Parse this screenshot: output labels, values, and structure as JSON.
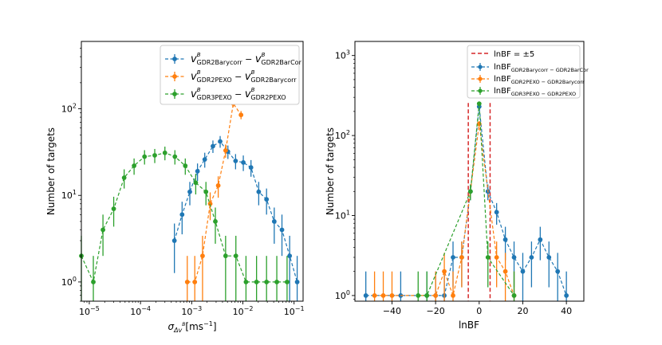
{
  "colors": {
    "blue": "#1f77b4",
    "orange": "#ff7f0e",
    "green": "#2ca02c",
    "red": "#d62728"
  },
  "chart_data": [
    {
      "type": "line",
      "xscale": "log",
      "yscale": "log",
      "xlim": [
        7e-06,
        0.15
      ],
      "ylim": [
        0.6,
        600
      ],
      "xlabel": "σ_Δv^B[ms^-1]",
      "xlabel_main": "σ",
      "xlabel_sub": "Δv",
      "xlabel_sup": "B",
      "xlabel_tail": "[ms",
      "xlabel_exp": "−1",
      "xlabel_close": "]",
      "ylabel": "Number of targets",
      "xticks": [
        {
          "v": 1e-05,
          "base": "10",
          "exp": "−5"
        },
        {
          "v": 0.0001,
          "base": "10",
          "exp": "−4"
        },
        {
          "v": 0.001,
          "base": "10",
          "exp": "−3"
        },
        {
          "v": 0.01,
          "base": "10",
          "exp": "−2"
        },
        {
          "v": 0.1,
          "base": "10",
          "exp": "−1"
        }
      ],
      "yticks": [
        {
          "v": 1,
          "base": "10",
          "exp": "0"
        },
        {
          "v": 10,
          "base": "10",
          "exp": "1"
        },
        {
          "v": 100,
          "base": "10",
          "exp": "2"
        }
      ],
      "legend_position": "top-right",
      "series": [
        {
          "name": "v^B_GDR2Barycorr − v^B_GDR2BarCor",
          "legend_parts": [
            "GDR2Barycorr",
            "GDR2BarCor"
          ],
          "color": "blue",
          "x": [
            0.00046,
            0.00065,
            0.00092,
            0.0013,
            0.0018,
            0.0026,
            0.0036,
            0.0051,
            0.0072,
            0.0102,
            0.0144,
            0.0204,
            0.029,
            0.041,
            0.058,
            0.082,
            0.115
          ],
          "y": [
            3,
            6,
            11,
            19,
            26,
            37,
            42,
            32,
            25,
            24,
            21,
            11,
            9,
            5,
            4,
            2,
            1
          ]
        },
        {
          "name": "v^B_GDR2PEXO − v^B_GDR2Barycorr",
          "legend_parts": [
            "GDR2PEXO",
            "GDR2Barycorr"
          ],
          "color": "orange",
          "x": [
            0.00082,
            0.00115,
            0.00163,
            0.0023,
            0.0033,
            0.0046,
            0.0065,
            0.0092
          ],
          "y": [
            1,
            1,
            2,
            8,
            13,
            33,
            115,
            85
          ]
        },
        {
          "name": "v^B_GDR3PEXO − v^B_GDR2PEXO",
          "legend_parts": [
            "GDR3PEXO",
            "GDR2PEXO"
          ],
          "color": "green",
          "x": [
            7e-06,
            1.2e-05,
            1.85e-05,
            3e-05,
            4.8e-05,
            7.5e-05,
            0.00012,
            0.00019,
            0.0003,
            0.00047,
            0.00075,
            0.0012,
            0.0019,
            0.0029,
            0.0046,
            0.0073,
            0.0115,
            0.0185,
            0.029,
            0.046,
            0.073
          ],
          "y": [
            2,
            1,
            4,
            7,
            16,
            22,
            28,
            29,
            31,
            28,
            22,
            14,
            11,
            5,
            2,
            2,
            1,
            1,
            1,
            1,
            1
          ]
        }
      ]
    },
    {
      "type": "line",
      "yscale": "log",
      "xlim": [
        -57,
        48
      ],
      "ylim": [
        0.85,
        1500
      ],
      "xlabel": "lnBF",
      "ylabel": "Number of targets",
      "xticks": [
        {
          "v": -40,
          "label": "−40"
        },
        {
          "v": -20,
          "label": "−20"
        },
        {
          "v": 0,
          "label": "0"
        },
        {
          "v": 20,
          "label": "20"
        },
        {
          "v": 40,
          "label": "40"
        }
      ],
      "yticks": [
        {
          "v": 1,
          "base": "10",
          "exp": "0"
        },
        {
          "v": 10,
          "base": "10",
          "exp": "1"
        },
        {
          "v": 100,
          "base": "10",
          "exp": "2"
        },
        {
          "v": 1000,
          "base": "10",
          "exp": "3"
        }
      ],
      "legend_position": "top-right",
      "threshold_lines": [
        -5,
        5
      ],
      "threshold_label": "lnBF = ±5",
      "series": [
        {
          "name": "lnBF_GDR2Barycorr − GDR2BarCor",
          "legend_sub": "GDR2Barycorr − GDR2BarCor",
          "color": "blue",
          "x": [
            -52,
            -36,
            -24,
            -20,
            -16,
            -12,
            -8,
            -4,
            0,
            4,
            8,
            12,
            16,
            20,
            24,
            28,
            32,
            36,
            40
          ],
          "y": [
            1,
            1,
            1,
            1,
            1,
            3,
            3,
            20,
            230,
            20,
            11,
            5,
            3,
            2,
            3,
            5,
            3,
            2,
            1
          ]
        },
        {
          "name": "lnBF_GDR2PEXO − GDR2Barycorr",
          "legend_sub": "GDR2PEXO − GDR2Barycorr",
          "color": "orange",
          "x": [
            -48,
            -44,
            -40,
            -20,
            -16,
            -12,
            -8,
            0,
            8,
            12,
            16
          ],
          "y": [
            1,
            1,
            1,
            1,
            2,
            1,
            3,
            140,
            3,
            2,
            1
          ]
        },
        {
          "name": "lnBF_GDR3PEXO − GDR2PEXO",
          "legend_sub": "GDR3PEXO − GDR2PEXO",
          "color": "green",
          "x": [
            -28,
            -24,
            -4,
            0,
            4,
            16
          ],
          "y": [
            1,
            1,
            20,
            250,
            3,
            1
          ]
        }
      ]
    }
  ]
}
